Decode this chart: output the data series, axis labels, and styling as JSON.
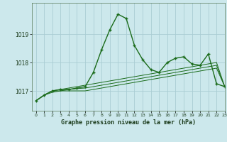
{
  "title": "Graphe pression niveau de la mer (hPa)",
  "background_color": "#cce8ec",
  "grid_color": "#aacdd4",
  "line_color": "#1a6b1a",
  "xlim": [
    -0.5,
    23
  ],
  "ylim": [
    1016.3,
    1020.1
  ],
  "yticks": [
    1017,
    1018,
    1019
  ],
  "yticklabels": [
    "1017",
    "1018",
    "1019"
  ],
  "xticks": [
    0,
    1,
    2,
    3,
    4,
    5,
    6,
    7,
    8,
    9,
    10,
    11,
    12,
    13,
    14,
    15,
    16,
    17,
    18,
    19,
    20,
    21,
    22,
    23
  ],
  "series_main": [
    1016.65,
    1016.85,
    1017.0,
    1017.05,
    1017.05,
    1017.1,
    1017.15,
    1017.65,
    1018.45,
    1019.15,
    1019.7,
    1019.55,
    1018.6,
    1018.1,
    1017.75,
    1017.65,
    1018.0,
    1018.15,
    1018.2,
    1017.95,
    1017.9,
    1018.3,
    1017.25,
    1017.15
  ],
  "series_flat1": [
    1016.65,
    1016.85,
    1017.0,
    1017.05,
    1017.1,
    1017.15,
    1017.2,
    1017.25,
    1017.3,
    1017.35,
    1017.4,
    1017.45,
    1017.5,
    1017.55,
    1017.6,
    1017.65,
    1017.7,
    1017.75,
    1017.8,
    1017.85,
    1017.9,
    1017.95,
    1018.0,
    1017.15
  ],
  "series_flat2": [
    1016.65,
    1016.85,
    1017.0,
    1017.0,
    1017.05,
    1017.08,
    1017.1,
    1017.15,
    1017.2,
    1017.25,
    1017.3,
    1017.35,
    1017.4,
    1017.45,
    1017.5,
    1017.55,
    1017.6,
    1017.65,
    1017.7,
    1017.75,
    1017.8,
    1017.85,
    1017.9,
    1017.15
  ],
  "series_flat3": [
    1016.65,
    1016.85,
    1016.95,
    1017.0,
    1017.0,
    1017.0,
    1017.0,
    1017.05,
    1017.1,
    1017.15,
    1017.2,
    1017.25,
    1017.3,
    1017.35,
    1017.4,
    1017.45,
    1017.5,
    1017.55,
    1017.6,
    1017.65,
    1017.7,
    1017.75,
    1017.8,
    1017.15
  ]
}
